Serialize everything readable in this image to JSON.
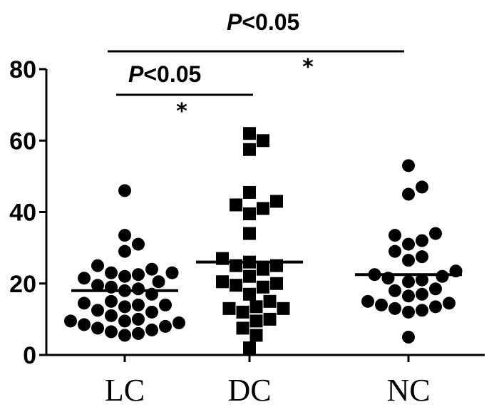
{
  "chart_data": {
    "type": "scatter",
    "title": "",
    "xlabel": "",
    "ylabel": "",
    "ylim": [
      0,
      80
    ],
    "yticks": [
      0,
      20,
      40,
      60,
      80
    ],
    "grid": false,
    "categories": [
      "LC",
      "DC",
      "NC"
    ],
    "series": [
      {
        "category": "LC",
        "marker": "circle",
        "mean": 18,
        "values": [
          46,
          33.5,
          31,
          29,
          25,
          24,
          23,
          23,
          22.5,
          22,
          21.5,
          20.5,
          19.5,
          19,
          18.5,
          18,
          17,
          15,
          14.5,
          14,
          14,
          13.5,
          12.5,
          12,
          11,
          10,
          9.5,
          9.5,
          9,
          8.5,
          8,
          7.5,
          7,
          6.5,
          6,
          5.5
        ]
      },
      {
        "category": "DC",
        "marker": "square",
        "mean": 26,
        "values": [
          62,
          60,
          57.5,
          45.5,
          43,
          42,
          41,
          39.5,
          34,
          27,
          26,
          25,
          25,
          24,
          22,
          20.5,
          20,
          19.5,
          19,
          17,
          15,
          13.5,
          13,
          13,
          12,
          10,
          9.5,
          7.5,
          5.5,
          2
        ]
      },
      {
        "category": "NC",
        "marker": "circle",
        "mean": 22.5,
        "values": [
          53,
          47,
          45,
          34,
          33.5,
          32,
          31,
          29,
          27.5,
          26.5,
          23.5,
          22.5,
          22,
          21.5,
          21,
          20.5,
          18.5,
          18,
          17,
          16.5,
          15,
          14.5,
          14,
          13.5,
          13,
          12.5,
          12,
          5
        ]
      }
    ],
    "comparisons": [
      {
        "from": "LC",
        "to": "DC",
        "p_italic": "P",
        "p_rest": "<0.05",
        "marker": "*"
      },
      {
        "from": "LC",
        "to": "NC",
        "p_italic": "P",
        "p_rest": "<0.05",
        "marker": "*"
      }
    ]
  }
}
